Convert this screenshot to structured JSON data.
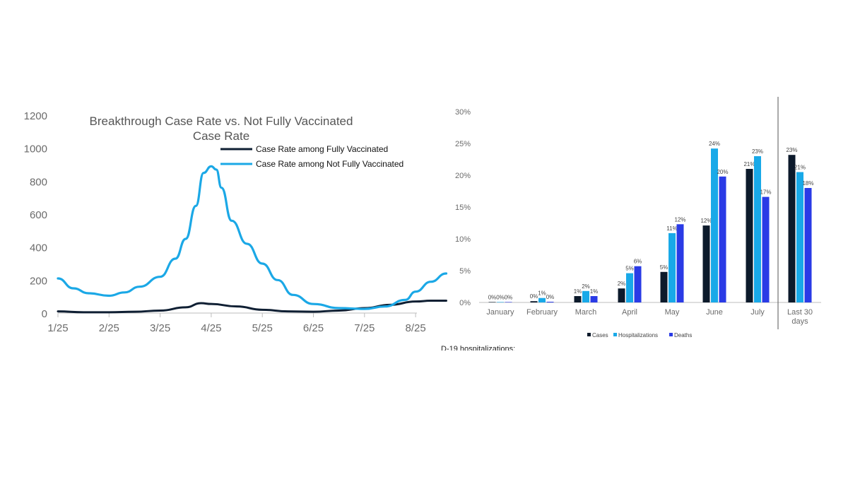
{
  "colors": {
    "fully": "#0f1f33",
    "not_fully": "#1ba8e6",
    "cases": "#0c1a2b",
    "hospitalizations": "#19a9e8",
    "deaths": "#2a3be6",
    "axis_text": "#6b6b6b",
    "divider": "#555555"
  },
  "chart_data": [
    {
      "type": "line",
      "title": "Breakthrough Case Rate vs. Not Fully Vaccinated Case Rate",
      "title_lines": [
        "Breakthrough Case Rate vs. Not Fully Vaccinated",
        "Case Rate"
      ],
      "x_ticks": [
        "1/25",
        "2/25",
        "3/25",
        "4/25",
        "5/25",
        "6/25",
        "7/25",
        "8/25"
      ],
      "y_ticks": [
        0,
        200,
        400,
        600,
        800,
        1000,
        1200
      ],
      "ylim": [
        0,
        1200
      ],
      "legend_position": "top-right",
      "series": [
        {
          "name": "Case Rate among Fully Vaccinated",
          "color": "#0f1f33",
          "points": [
            [
              0,
              10
            ],
            [
              0.5,
              5
            ],
            [
              1,
              5
            ],
            [
              1.5,
              8
            ],
            [
              2,
              15
            ],
            [
              2.5,
              35
            ],
            [
              2.8,
              60
            ],
            [
              3,
              55
            ],
            [
              3.5,
              40
            ],
            [
              4,
              20
            ],
            [
              4.5,
              10
            ],
            [
              5,
              8
            ],
            [
              5.5,
              15
            ],
            [
              6,
              30
            ],
            [
              6.5,
              50
            ],
            [
              7,
              70
            ],
            [
              7.3,
              75
            ],
            [
              7.6,
              75
            ]
          ]
        },
        {
          "name": "Case Rate among Not Fully Vaccinated",
          "color": "#1ba8e6",
          "points": [
            [
              0,
              210
            ],
            [
              0.3,
              150
            ],
            [
              0.6,
              120
            ],
            [
              1,
              105
            ],
            [
              1.3,
              125
            ],
            [
              1.6,
              160
            ],
            [
              2,
              220
            ],
            [
              2.3,
              330
            ],
            [
              2.5,
              450
            ],
            [
              2.7,
              650
            ],
            [
              2.85,
              850
            ],
            [
              3,
              890
            ],
            [
              3.1,
              870
            ],
            [
              3.2,
              760
            ],
            [
              3.4,
              560
            ],
            [
              3.7,
              420
            ],
            [
              4,
              300
            ],
            [
              4.3,
              200
            ],
            [
              4.6,
              110
            ],
            [
              5,
              55
            ],
            [
              5.5,
              30
            ],
            [
              6,
              25
            ],
            [
              6.4,
              40
            ],
            [
              6.8,
              80
            ],
            [
              7,
              130
            ],
            [
              7.3,
              190
            ],
            [
              7.6,
              240
            ]
          ]
        }
      ]
    },
    {
      "type": "bar",
      "categories": [
        "January",
        "February",
        "March",
        "April",
        "May",
        "June",
        "July",
        "Last 30 days"
      ],
      "y_ticks": [
        "0%",
        "5%",
        "10%",
        "15%",
        "20%",
        "25%",
        "30%"
      ],
      "ylim": [
        0,
        30
      ],
      "legend_position": "bottom",
      "series": [
        {
          "name": "Cases",
          "color": "#0c1a2b",
          "values": [
            0,
            0.2,
            1,
            2.2,
            4.8,
            12.1,
            21,
            23.2
          ],
          "labels": [
            "0%",
            "0%",
            "1%",
            "2%",
            "5%",
            "12%",
            "21%",
            "23%"
          ]
        },
        {
          "name": "Hospitalizations",
          "color": "#19a9e8",
          "values": [
            0,
            0.7,
            1.8,
            4.6,
            10.9,
            24.2,
            23,
            20.5
          ],
          "labels": [
            "0%",
            "1%",
            "2%",
            "5%",
            "11%",
            "24%",
            "23%",
            "21%"
          ]
        },
        {
          "name": "Deaths",
          "color": "#2a3be6",
          "values": [
            0,
            0.1,
            1.0,
            5.7,
            12.3,
            19.8,
            16.6,
            18
          ],
          "labels": [
            "0%",
            "0%",
            "1%",
            "6%",
            "12%",
            "20%",
            "17%",
            "18%"
          ]
        }
      ]
    }
  ],
  "caption_fragment": "D-19 hospitalizations:"
}
